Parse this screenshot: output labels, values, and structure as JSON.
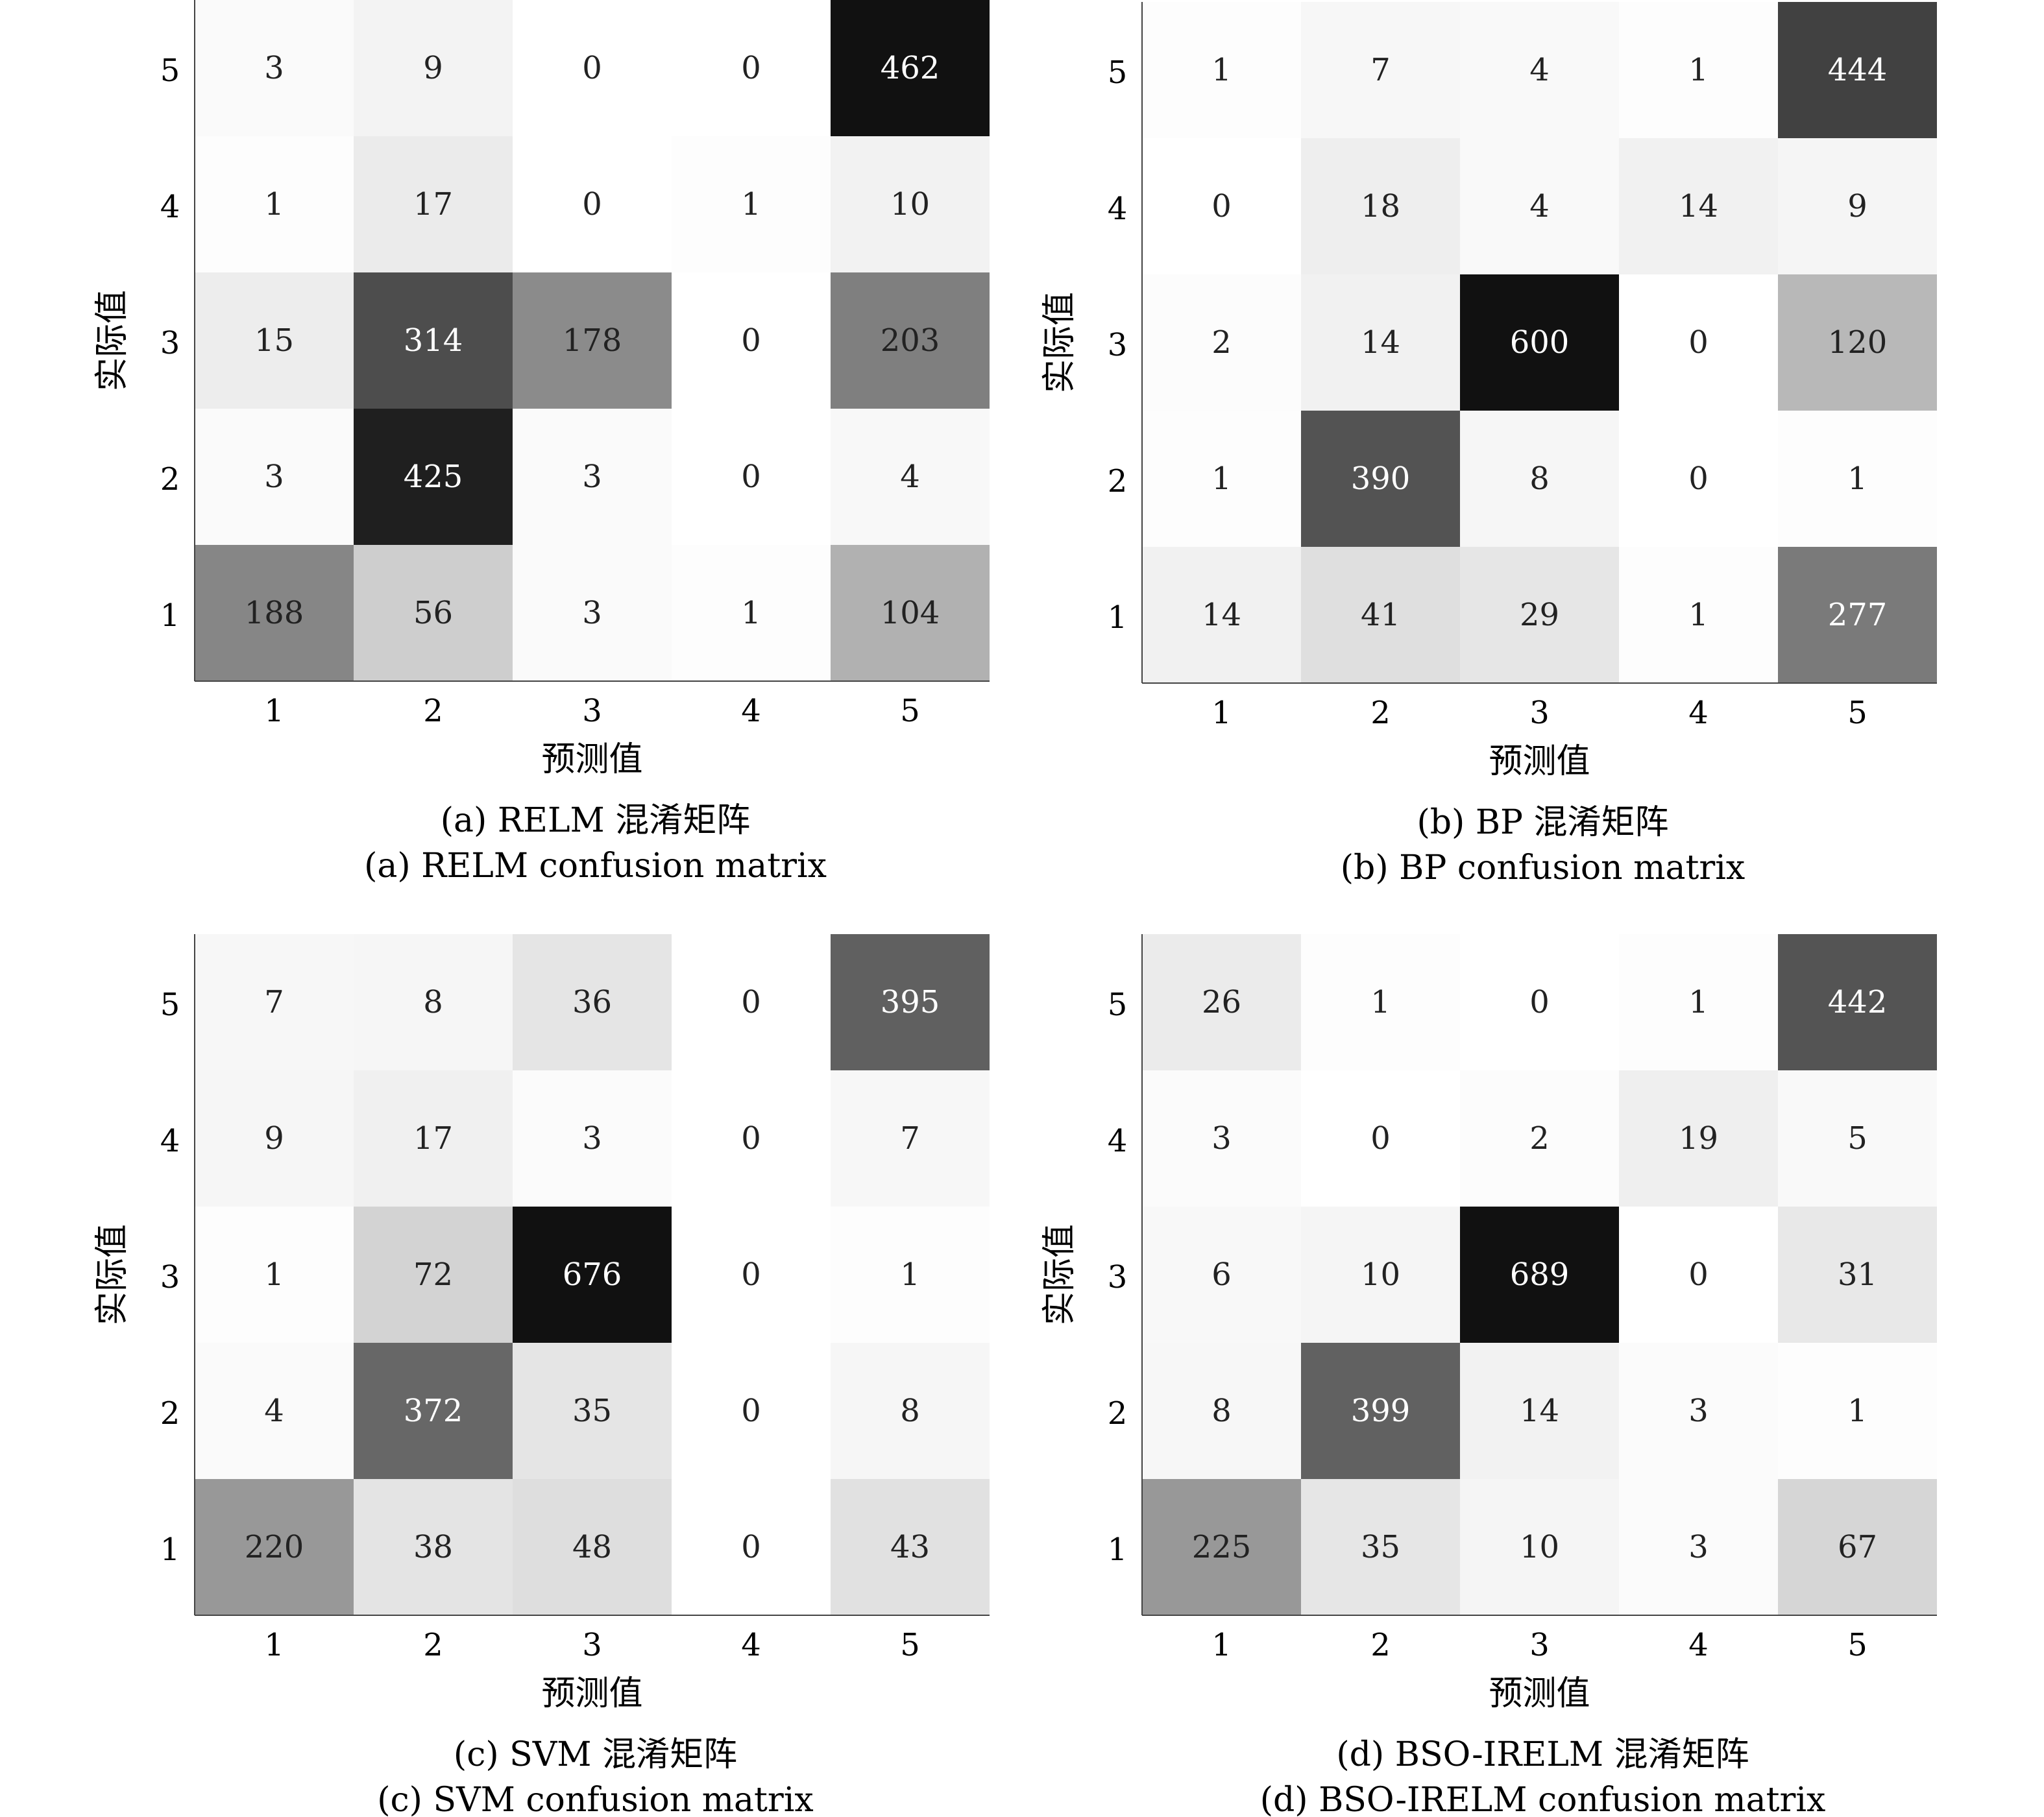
{
  "chart_data": [
    {
      "type": "heatmap",
      "caption_cn": "(a) RELM 混淆矩阵",
      "caption_en": "(a) RELM confusion matrix",
      "xlabel": "预测值",
      "ylabel": "实际值",
      "x_categories": [
        "1",
        "2",
        "3",
        "4",
        "5"
      ],
      "y_categories": [
        "5",
        "4",
        "3",
        "2",
        "1"
      ],
      "values": [
        [
          3,
          9,
          0,
          0,
          462
        ],
        [
          1,
          17,
          0,
          1,
          10
        ],
        [
          15,
          314,
          178,
          0,
          203
        ],
        [
          3,
          425,
          3,
          0,
          4
        ],
        [
          188,
          56,
          3,
          1,
          104
        ]
      ],
      "colormap": [
        "#ffffff",
        "#111111"
      ]
    },
    {
      "type": "heatmap",
      "caption_cn": "(b) BP 混淆矩阵",
      "caption_en": "(b) BP confusion matrix",
      "xlabel": "预测值",
      "ylabel": "实际值",
      "x_categories": [
        "1",
        "2",
        "3",
        "4",
        "5"
      ],
      "y_categories": [
        "5",
        "4",
        "3",
        "2",
        "1"
      ],
      "values": [
        [
          1,
          7,
          4,
          1,
          444
        ],
        [
          0,
          18,
          4,
          14,
          9
        ],
        [
          2,
          14,
          600,
          0,
          120
        ],
        [
          1,
          390,
          8,
          0,
          1
        ],
        [
          14,
          41,
          29,
          1,
          277
        ]
      ],
      "colormap": [
        "#ffffff",
        "#111111"
      ]
    },
    {
      "type": "heatmap",
      "caption_cn": "(c) SVM 混淆矩阵",
      "caption_en": "(c) SVM confusion matrix",
      "xlabel": "预测值",
      "ylabel": "实际值",
      "x_categories": [
        "1",
        "2",
        "3",
        "4",
        "5"
      ],
      "y_categories": [
        "5",
        "4",
        "3",
        "2",
        "1"
      ],
      "values": [
        [
          7,
          8,
          36,
          0,
          395
        ],
        [
          9,
          17,
          3,
          0,
          7
        ],
        [
          1,
          72,
          676,
          0,
          1
        ],
        [
          4,
          372,
          35,
          0,
          8
        ],
        [
          220,
          38,
          48,
          0,
          43
        ]
      ],
      "colormap": [
        "#ffffff",
        "#111111"
      ]
    },
    {
      "type": "heatmap",
      "caption_cn": "(d) BSO-IRELM 混淆矩阵",
      "caption_en": "(d) BSO-IRELM confusion matrix",
      "xlabel": "预测值",
      "ylabel": "实际值",
      "x_categories": [
        "1",
        "2",
        "3",
        "4",
        "5"
      ],
      "y_categories": [
        "5",
        "4",
        "3",
        "2",
        "1"
      ],
      "values": [
        [
          26,
          1,
          0,
          1,
          442
        ],
        [
          3,
          0,
          2,
          19,
          5
        ],
        [
          6,
          10,
          689,
          0,
          31
        ],
        [
          8,
          399,
          14,
          3,
          1
        ],
        [
          225,
          35,
          10,
          3,
          67
        ]
      ],
      "colormap": [
        "#ffffff",
        "#111111"
      ]
    }
  ]
}
